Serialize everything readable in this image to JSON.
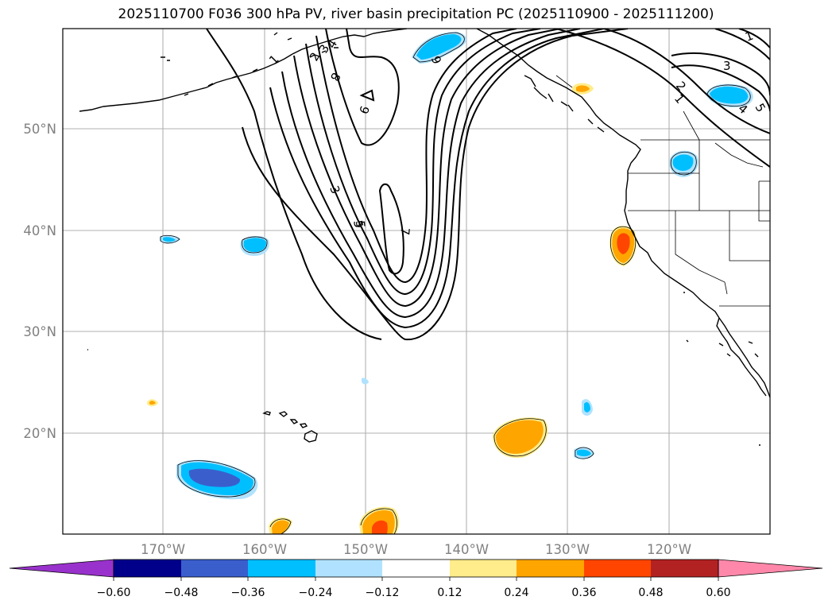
{
  "title": "2025110700 F036 300 hPa PV, river basin precipitation PC (2025110900 - 2025111200)",
  "latitude_labels": [
    "50°N",
    "40°N",
    "30°N",
    "20°N"
  ],
  "longitude_labels": [
    "170°W",
    "160°W",
    "150°W",
    "140°W",
    "130°W",
    "120°W"
  ],
  "pv_contour_labels": [
    "1",
    "2",
    "3",
    "4",
    "5",
    "6",
    "7",
    "8",
    "9",
    "3",
    "5",
    "2",
    "1",
    "1",
    "3",
    "4",
    "5"
  ],
  "colorbar": {
    "tick_labels": [
      "−0.60",
      "−0.48",
      "−0.36",
      "−0.24",
      "−0.12",
      "0.12",
      "0.24",
      "0.36",
      "0.48",
      "0.60"
    ],
    "bin_colors": [
      "#9932cc",
      "#00008b",
      "#3a5fcd",
      "#00bfff",
      "#b0e2ff",
      "#ffffff",
      "#ffec8b",
      "#ffa500",
      "#ff4500",
      "#b22222",
      "#ff88aa"
    ]
  },
  "colors": {
    "blue_strong": "#3a5fcd",
    "blue_mid": "#00bfff",
    "blue_light": "#b0e2ff",
    "yellow": "#ffec8b",
    "orange": "#ffa500",
    "red": "#ff4500",
    "grid": "#b0b0b0"
  }
}
